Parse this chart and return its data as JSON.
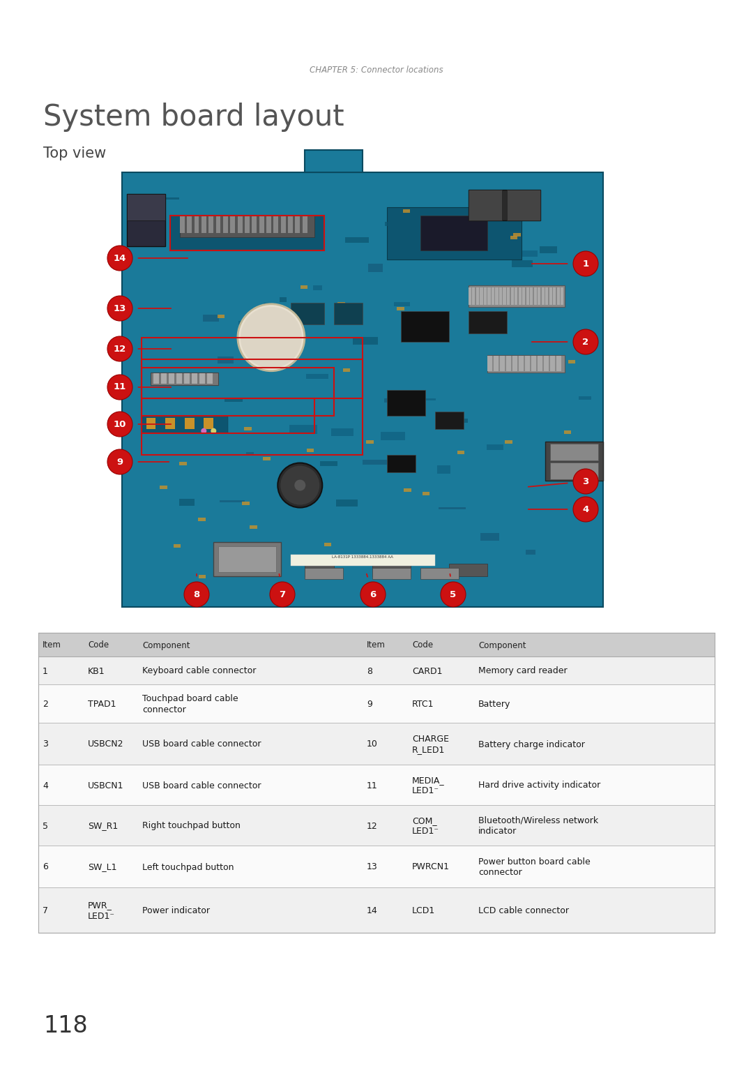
{
  "page_width": 10.8,
  "page_height": 15.28,
  "bg_color": "#ffffff",
  "chapter_text": "CHAPTER 5: Connector locations",
  "title": "System board layout",
  "subtitle": "Top view",
  "page_number": "118",
  "table_header": [
    "Item",
    "Code",
    "Component",
    "Item",
    "Code",
    "Component"
  ],
  "table_rows": [
    [
      "1",
      "KB1",
      "Keyboard cable connector",
      "8",
      "CARD1",
      "Memory card reader"
    ],
    [
      "2",
      "TPAD1",
      "Touchpad board cable\nconnector",
      "9",
      "RTC1",
      "Battery"
    ],
    [
      "3",
      "USBCN2",
      "USB board cable connector",
      "10",
      "CHARGE\nR_LED1",
      "Battery charge indicator"
    ],
    [
      "4",
      "USBCN1",
      "USB board cable connector",
      "11",
      "MEDIA_\nLED1⁻",
      "Hard drive activity indicator"
    ],
    [
      "5",
      "SW_R1",
      "Right touchpad button",
      "12",
      "COM_\nLED1⁻",
      "Bluetooth/Wireless network\nindicator"
    ],
    [
      "6",
      "SW_L1",
      "Left touchpad button",
      "13",
      "PWRCN1",
      "Power button board cable\nconnector"
    ],
    [
      "7",
      "PWR_\nLED1⁻",
      "Power indicator",
      "14",
      "LCD1",
      "LCD cable connector"
    ]
  ],
  "row_bg_even": "#f0f0f0",
  "row_bg_odd": "#fafafa",
  "header_bg": "#cccccc",
  "chapter_color": "#888888",
  "title_color": "#555555",
  "subtitle_color": "#444444",
  "label_red": "#cc1111",
  "pcb_main": "#1a7a9a",
  "pcb_dark": "#0f5570",
  "pcb_mid": "#2a8aaa",
  "pcb_trace": "#1e6f8a"
}
